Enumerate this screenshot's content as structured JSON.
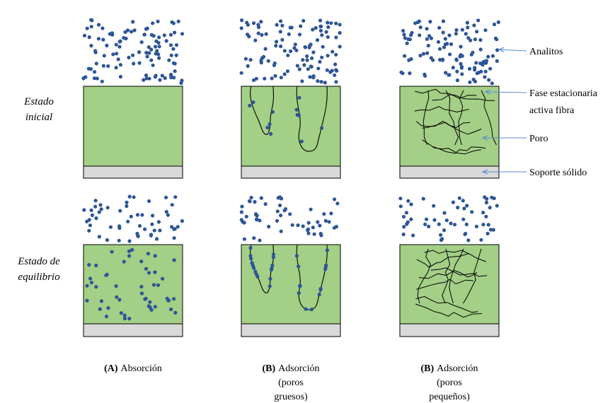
{
  "row_labels": [
    {
      "lines": [
        "Estado",
        "inicial"
      ]
    },
    {
      "lines": [
        "Estado de",
        "equilibrio"
      ]
    }
  ],
  "annotations": [
    {
      "lines": [
        "Analitos"
      ]
    },
    {
      "lines": [
        "Fase estacionaria",
        "activa fibra"
      ]
    },
    {
      "lines": [
        "Poro"
      ]
    },
    {
      "lines": [
        "Soporte sólido"
      ]
    }
  ],
  "captions": [
    {
      "letter": "(A)",
      "lines": [
        "Absorción"
      ]
    },
    {
      "letter": "(B)",
      "lines": [
        "Adsorción",
        "(poros",
        "gruesos)"
      ]
    },
    {
      "letter": "(B)",
      "lines": [
        "Adsorción",
        "(poros",
        "pequeños)"
      ]
    }
  ]
}
